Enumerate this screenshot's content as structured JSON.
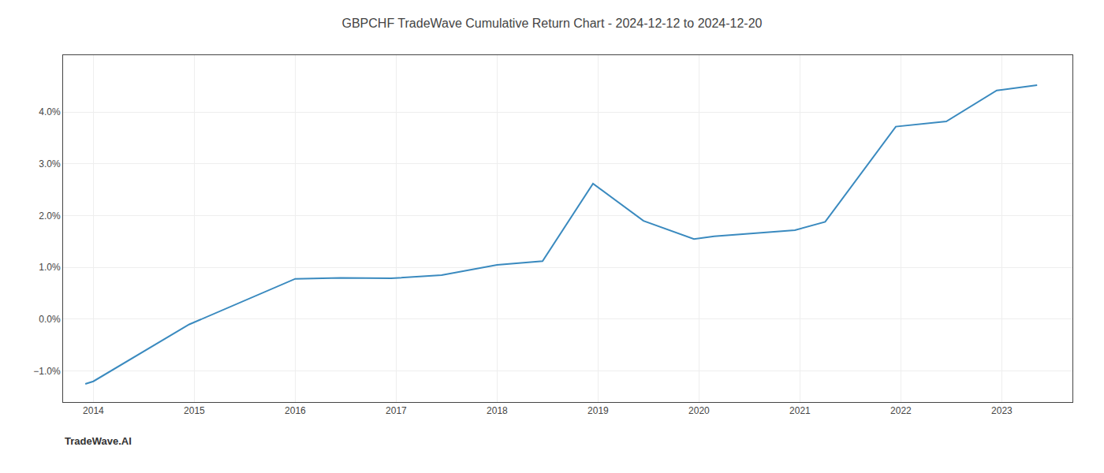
{
  "chart_data": {
    "type": "line",
    "title": "GBPCHF TradeWave Cumulative Return Chart - 2024-12-12 to 2024-12-20",
    "annotations": [
      "TradeWave.AI"
    ],
    "x": [
      2013.92,
      2014.0,
      2014.95,
      2016.0,
      2016.45,
      2016.95,
      2017.45,
      2018.0,
      2018.45,
      2018.95,
      2019.45,
      2019.95,
      2020.15,
      2020.95,
      2021.25,
      2021.95,
      2022.45,
      2022.95,
      2023.35
    ],
    "values": [
      -1.25,
      -1.2,
      -0.1,
      0.78,
      0.8,
      0.79,
      0.85,
      1.05,
      1.12,
      2.62,
      1.9,
      1.55,
      1.6,
      1.72,
      1.88,
      3.72,
      3.82,
      4.42,
      4.52
    ],
    "color": "#3a8abf",
    "xlim": [
      2013.7,
      2023.7
    ],
    "ylim": [
      -1.6,
      5.1
    ],
    "xticks": [
      2014,
      2015,
      2016,
      2017,
      2018,
      2019,
      2020,
      2021,
      2022,
      2023
    ],
    "yticks": [
      {
        "value": -1.0,
        "label": "−1.0%"
      },
      {
        "value": 0.0,
        "label": "0.0%"
      },
      {
        "value": 1.0,
        "label": "1.0%"
      },
      {
        "value": 2.0,
        "label": "2.0%"
      },
      {
        "value": 3.0,
        "label": "3.0%"
      },
      {
        "value": 4.0,
        "label": "4.0%"
      }
    ],
    "grid": true
  }
}
